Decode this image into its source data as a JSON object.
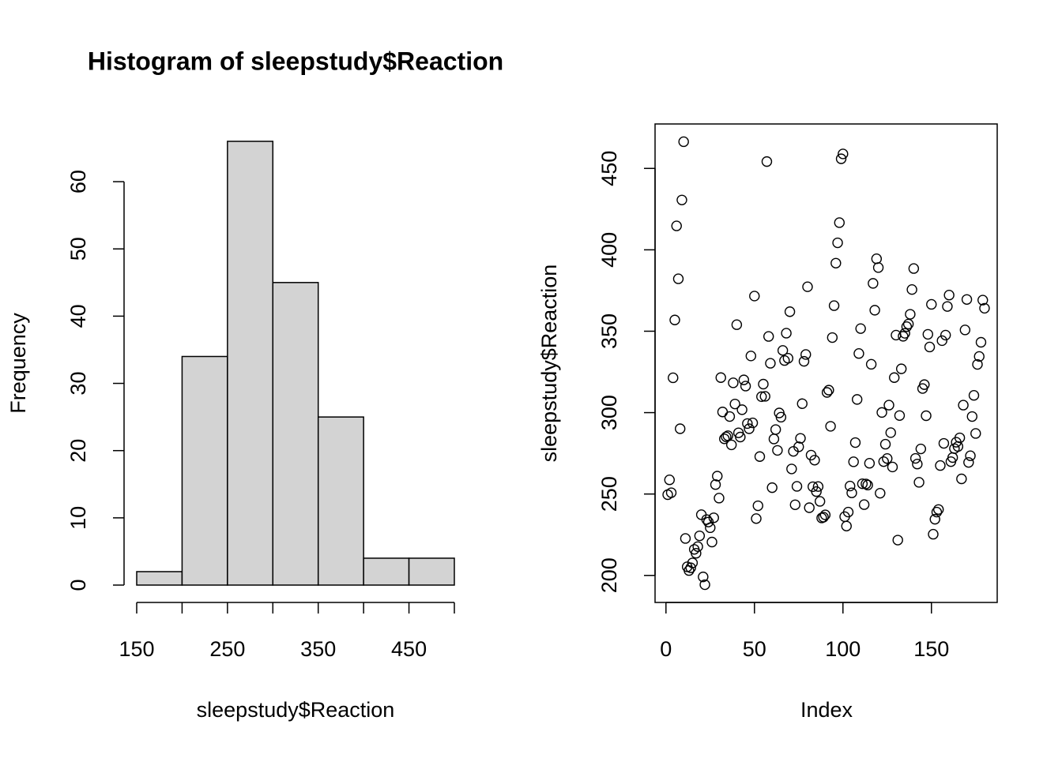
{
  "chart_data": [
    {
      "type": "histogram",
      "title": "Histogram of sleepstudy$Reaction",
      "x_label": "sleepstudy$Reaction",
      "y_label": "Frequency",
      "bins": [
        150,
        200,
        250,
        300,
        350,
        400,
        450,
        500
      ],
      "counts": [
        2,
        34,
        66,
        45,
        25,
        4,
        4
      ],
      "color": "#d3d3d3",
      "xlim": [
        150,
        500
      ],
      "xticks": [
        150,
        250,
        350,
        450
      ],
      "ylim": [
        0,
        66
      ],
      "yticks": [
        0,
        10,
        20,
        30,
        40,
        50,
        60
      ]
    },
    {
      "type": "scatter",
      "x_label": "Index",
      "y_label": "sleepstudy$Reaction",
      "xlim": [
        -6.16,
        187.16
      ],
      "xticks": [
        0,
        50,
        100,
        150
      ],
      "ylim": [
        183.4,
        477.3
      ],
      "yticks": [
        200,
        250,
        300,
        350,
        400,
        450
      ],
      "color": "#000000",
      "x": [
        1,
        2,
        3,
        4,
        5,
        6,
        7,
        8,
        9,
        10,
        11,
        12,
        13,
        14,
        15,
        16,
        17,
        18,
        19,
        20,
        21,
        22,
        23,
        24,
        25,
        26,
        27,
        28,
        29,
        30,
        31,
        32,
        33,
        34,
        35,
        36,
        37,
        38,
        39,
        40,
        41,
        42,
        43,
        44,
        45,
        46,
        47,
        48,
        49,
        50,
        51,
        52,
        53,
        54,
        55,
        56,
        57,
        58,
        59,
        60,
        61,
        62,
        63,
        64,
        65,
        66,
        67,
        68,
        69,
        70,
        71,
        72,
        73,
        74,
        75,
        76,
        77,
        78,
        79,
        80,
        81,
        82,
        83,
        84,
        85,
        86,
        87,
        88,
        89,
        90,
        91,
        92,
        93,
        94,
        95,
        96,
        97,
        98,
        99,
        100,
        101,
        102,
        103,
        104,
        105,
        106,
        107,
        108,
        109,
        110,
        111,
        112,
        113,
        114,
        115,
        116,
        117,
        118,
        119,
        120,
        121,
        122,
        123,
        124,
        125,
        126,
        127,
        128,
        129,
        130,
        131,
        132,
        133,
        134,
        135,
        136,
        137,
        138,
        139,
        140,
        141,
        142,
        143,
        144,
        145,
        146,
        147,
        148,
        149,
        150,
        151,
        152,
        153,
        154,
        155,
        156,
        157,
        158,
        159,
        160,
        161,
        162,
        163,
        164,
        165,
        166,
        167,
        168,
        169,
        170,
        171,
        172,
        173,
        174,
        175,
        176,
        177,
        178,
        179,
        180
      ],
      "values": [
        249.6,
        258.7,
        250.8,
        321.4,
        356.9,
        414.7,
        382.2,
        290.1,
        430.6,
        466.4,
        222.7,
        205.3,
        203.0,
        204.7,
        207.7,
        216.0,
        213.6,
        217.7,
        224.3,
        237.3,
        199.1,
        194.3,
        234.3,
        232.8,
        229.3,
        220.5,
        235.4,
        255.8,
        261.0,
        247.5,
        321.5,
        300.4,
        283.9,
        285.1,
        285.8,
        297.6,
        280.2,
        318.3,
        305.3,
        354.0,
        287.6,
        285.0,
        301.8,
        320.1,
        316.3,
        293.3,
        290.1,
        334.8,
        293.7,
        371.6,
        234.9,
        242.8,
        273.0,
        309.8,
        317.5,
        310.0,
        454.2,
        346.8,
        330.3,
        253.9,
        283.8,
        289.6,
        276.8,
        299.8,
        297.2,
        338.2,
        332.0,
        348.8,
        333.4,
        362.0,
        265.4,
        276.2,
        243.4,
        254.7,
        279.0,
        284.2,
        305.5,
        331.5,
        335.7,
        377.3,
        241.6,
        273.9,
        254.5,
        270.8,
        251.5,
        254.6,
        245.5,
        235.3,
        235.8,
        237.2,
        312.4,
        313.8,
        291.6,
        346.1,
        365.7,
        391.8,
        404.3,
        416.7,
        455.9,
        458.9,
        236.1,
        230.3,
        238.9,
        254.9,
        250.7,
        269.8,
        281.6,
        308.1,
        336.3,
        351.6,
        256.3,
        243.5,
        256.2,
        255.5,
        268.9,
        329.7,
        379.4,
        362.9,
        394.5,
        389.1,
        250.5,
        300.1,
        269.9,
        280.6,
        271.8,
        304.6,
        287.7,
        266.6,
        321.5,
        347.6,
        221.7,
        298.2,
        326.9,
        346.9,
        348.7,
        352.8,
        354.4,
        360.4,
        375.6,
        388.5,
        271.9,
        268.4,
        257.2,
        277.7,
        314.8,
        317.2,
        298.1,
        348.1,
        340.3,
        366.5,
        225.3,
        234.5,
        238.9,
        240.5,
        267.5,
        344.2,
        281.1,
        347.6,
        365.2,
        372.2,
        269.9,
        272.4,
        277.9,
        281.8,
        279.2,
        284.5,
        259.3,
        304.6,
        350.8,
        369.5,
        269.4,
        273.5,
        297.6,
        310.6,
        287.2,
        329.6,
        334.5,
        343.2,
        369.1,
        364.1
      ]
    }
  ]
}
